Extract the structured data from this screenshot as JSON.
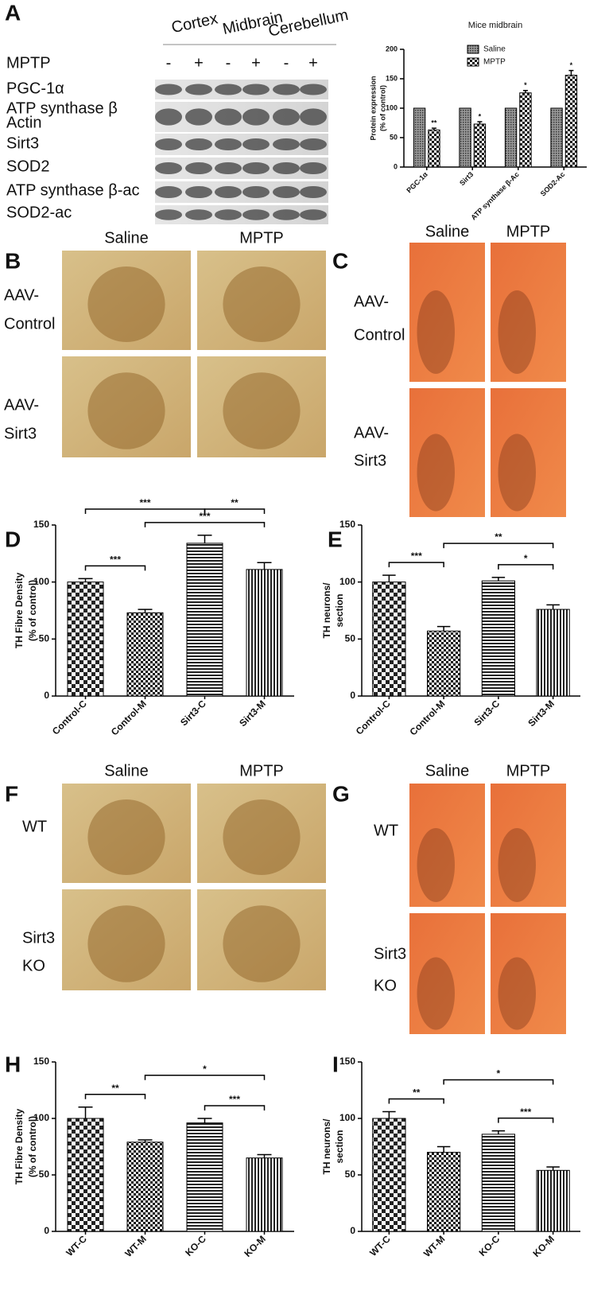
{
  "panels": {
    "a": "A",
    "b": "B",
    "c": "C",
    "d": "D",
    "e": "E",
    "f": "F",
    "g": "G",
    "h": "H",
    "i": "I"
  },
  "blot": {
    "regions": [
      "Cortex",
      "Midbrain",
      "Cerebellum"
    ],
    "treatment": "MPTP",
    "signs": [
      "-",
      "+",
      "-",
      "+",
      "-",
      "+"
    ],
    "rows": [
      "PGC-1α",
      "ATP synthase β",
      "Actin",
      "Sirt3",
      "SOD2",
      "ATP synthase β-ac",
      "SOD2-ac"
    ]
  },
  "images": {
    "b": {
      "columns": [
        "Saline",
        "MPTP"
      ],
      "rows": [
        [
          "AAV-",
          "Control"
        ],
        [
          "AAV-",
          "Sirt3"
        ]
      ]
    },
    "c": {
      "columns": [
        "Saline",
        "MPTP"
      ],
      "rows": [
        [
          "AAV-",
          "Control"
        ],
        [
          "AAV-",
          "Sirt3"
        ]
      ]
    },
    "f": {
      "columns": [
        "Saline",
        "MPTP"
      ],
      "rows": [
        [
          "WT"
        ],
        [
          "Sirt3",
          "KO"
        ]
      ]
    },
    "g": {
      "columns": [
        "Saline",
        "MPTP"
      ],
      "rows": [
        [
          "WT"
        ],
        [
          "Sirt3",
          "KO"
        ]
      ]
    }
  },
  "chart_data": [
    {
      "type": "bar",
      "title": "Mice midbrain",
      "y_label": [
        "Protein expression",
        "(% of control)"
      ],
      "categories": [
        "PGC-1α",
        "Sirt3",
        "ATP synthase β-Ac",
        "SOD2-Ac"
      ],
      "series": [
        {
          "name": "Saline",
          "values": [
            100,
            100,
            100,
            100
          ]
        },
        {
          "name": "MPTP",
          "values": [
            63,
            73,
            126,
            156
          ],
          "errors": [
            3,
            4,
            4,
            8
          ],
          "annotations": [
            "**",
            "*",
            "*",
            "*"
          ]
        }
      ],
      "ylim": [
        0,
        200
      ],
      "yticks": [
        0,
        50,
        100,
        150,
        200
      ],
      "legend": "top-right"
    },
    {
      "type": "bar",
      "y_label": [
        "TH Fibre Density",
        "(% of control)"
      ],
      "categories": [
        "Control-C",
        "Control-M",
        "Sirt3-C",
        "Sirt3-M"
      ],
      "values": [
        100,
        73,
        134,
        111
      ],
      "errors": [
        3,
        3,
        7,
        6
      ],
      "ylim": [
        0,
        150
      ],
      "yticks": [
        0,
        50,
        100,
        150
      ],
      "brackets": [
        {
          "text": "***",
          "from": "Control-C",
          "to": "Control-M"
        },
        {
          "text": "***",
          "from": "Control-M",
          "to": "Sirt3-M"
        },
        {
          "text": "***",
          "from": "Control-C",
          "to": "Sirt3-C"
        },
        {
          "text": "**",
          "from": "Sirt3-C",
          "to": "Sirt3-M"
        }
      ]
    },
    {
      "type": "bar",
      "y_label": [
        "TH neurons/",
        "section"
      ],
      "categories": [
        "Control-C",
        "Control-M",
        "Sirt3-C",
        "Sirt3-M"
      ],
      "values": [
        100,
        57,
        101,
        76
      ],
      "errors": [
        6,
        4,
        3,
        4
      ],
      "ylim": [
        0,
        150
      ],
      "yticks": [
        0,
        50,
        100,
        150
      ],
      "brackets": [
        {
          "text": "***",
          "from": "Control-C",
          "to": "Control-M"
        },
        {
          "text": "*",
          "from": "Sirt3-C",
          "to": "Sirt3-M"
        },
        {
          "text": "**",
          "from": "Control-M",
          "to": "Sirt3-M"
        }
      ]
    },
    {
      "type": "bar",
      "y_label": [
        "TH Fibre Density",
        "(% of control)"
      ],
      "categories": [
        "WT-C",
        "WT-M",
        "KO-C",
        "KO-M"
      ],
      "values": [
        100,
        79,
        96,
        65
      ],
      "errors": [
        10,
        2,
        4,
        3
      ],
      "ylim": [
        0,
        150
      ],
      "yticks": [
        0,
        50,
        100,
        150
      ],
      "brackets": [
        {
          "text": "**",
          "from": "WT-C",
          "to": "WT-M"
        },
        {
          "text": "***",
          "from": "KO-C",
          "to": "KO-M"
        },
        {
          "text": "*",
          "from": "WT-M",
          "to": "KO-M"
        }
      ]
    },
    {
      "type": "bar",
      "y_label": [
        "TH neurons/",
        "section"
      ],
      "categories": [
        "WT-C",
        "WT-M",
        "KO-C",
        "KO-M"
      ],
      "values": [
        100,
        70,
        86,
        54
      ],
      "errors": [
        6,
        5,
        3,
        3
      ],
      "ylim": [
        0,
        150
      ],
      "yticks": [
        0,
        50,
        100,
        150
      ],
      "brackets": [
        {
          "text": "**",
          "from": "WT-C",
          "to": "WT-M"
        },
        {
          "text": "***",
          "from": "KO-C",
          "to": "KO-M"
        },
        {
          "text": "*",
          "from": "WT-M",
          "to": "KO-M"
        }
      ]
    }
  ]
}
